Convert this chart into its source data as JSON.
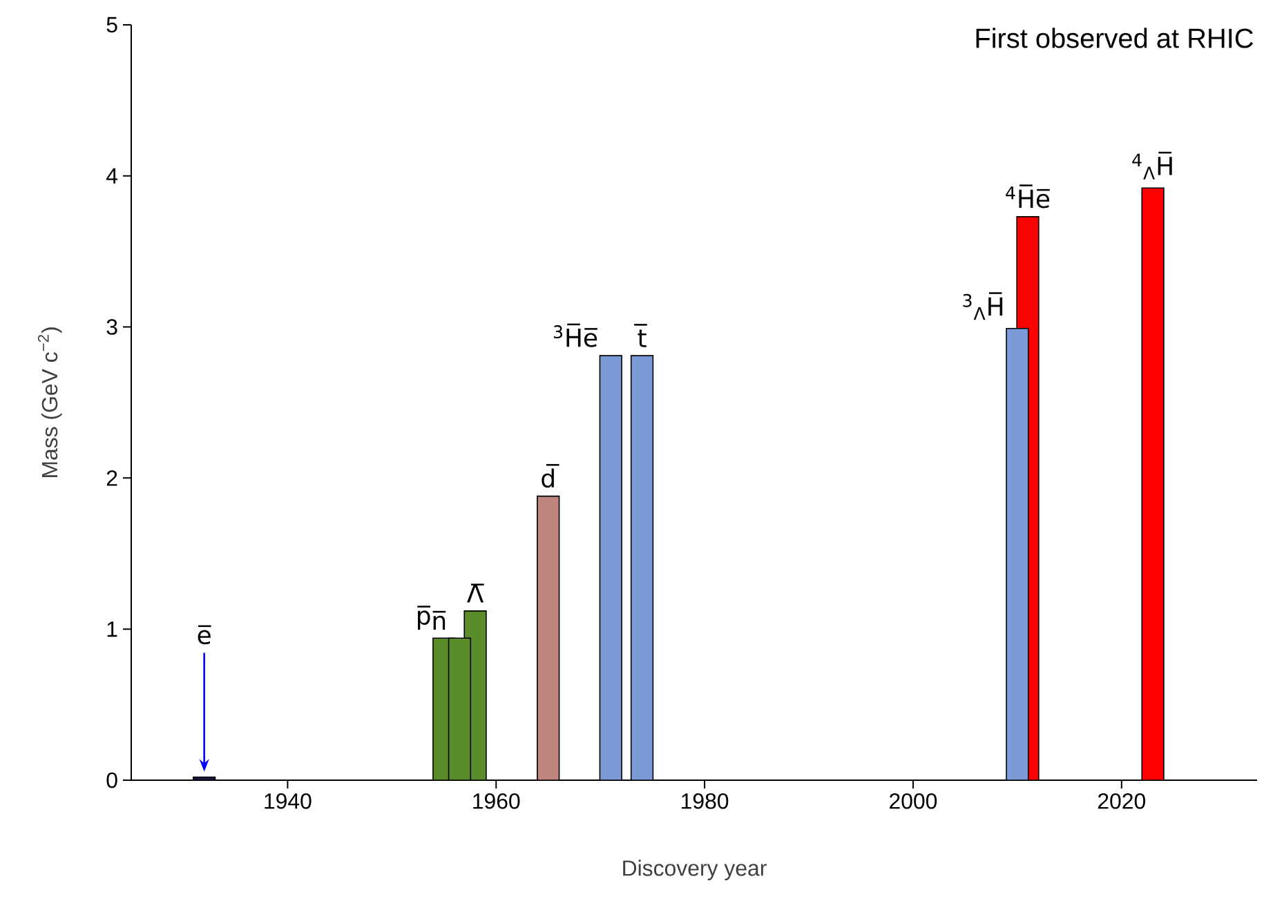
{
  "chart_data": {
    "type": "bar",
    "xlabel": "Discovery year",
    "ylabel": "Mass (GeV c$^{−2}$)",
    "x": [
      1932,
      1955,
      1956.5,
      1958,
      1965,
      1971,
      1974,
      2010,
      2011,
      2023
    ],
    "values": [
      0.02,
      0.94,
      0.94,
      1.12,
      1.88,
      2.81,
      2.81,
      2.99,
      3.73,
      3.92
    ],
    "colors": [
      "#1a1a40",
      "#5b8c2a",
      "#5b8c2a",
      "#5b8c2a",
      "#c0857c",
      "#7b9bd6",
      "#7b9bd6",
      "#7b9bd6",
      "#ff0000",
      "#ff0000"
    ],
    "xlim": [
      1925,
      2033
    ],
    "xticks": [
      1940,
      1960,
      1980,
      2000,
      2020
    ],
    "ylim": [
      0,
      5
    ],
    "yticks": [
      0,
      1,
      2,
      3,
      4,
      5
    ],
    "annotations": [
      "e̅",
      {
        "text": "p̅",
        "x": 1955,
        "y": 0.94
      },
      {
        "text": "n̅",
        "x": 1956.5,
        "y": 0.94
      },
      {
        "text": "Λ̅",
        "x": 1958,
        "y": 1.12
      },
      {
        "text": "d̅",
        "x": 1965,
        "y": 1.88
      },
      {
        "text": "$^{3}$H̅e̅",
        "x": 1971,
        "y": 2.81
      },
      {
        "text": "t̅",
        "x": 1974,
        "y": 2.81
      },
      {
        "text": "$^{3}$$_{Λ}$H̅",
        "x": 2010,
        "y": 2.99
      },
      {
        "text": "$^{4}$H̅e̅",
        "x": 2011,
        "y": 3.73
      },
      {
        "text": "$^{4}$$_{Λ}$H̅",
        "x": 2023,
        "y": 3.92
      },
      "First observed at RHIC"
    ]
  }
}
